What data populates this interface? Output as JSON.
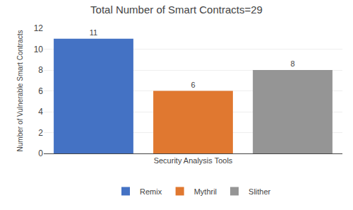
{
  "chart_data": {
    "type": "bar",
    "title": "Total Number of Smart Contracts=29",
    "xlabel": "Security Analysis Tools",
    "ylabel": "Number of Vulnerable Smart Contracts",
    "categories": [
      "Remix",
      "Mythril",
      "Slither"
    ],
    "values": [
      11,
      6,
      8
    ],
    "colors": [
      "#4472C4",
      "#E07830",
      "#959595"
    ],
    "ylim": [
      0,
      12
    ],
    "yticks": [
      0,
      2,
      4,
      6,
      8,
      10,
      12
    ],
    "grid": true,
    "data_labels": true,
    "tick_labels": "y",
    "legend": "bottom"
  }
}
